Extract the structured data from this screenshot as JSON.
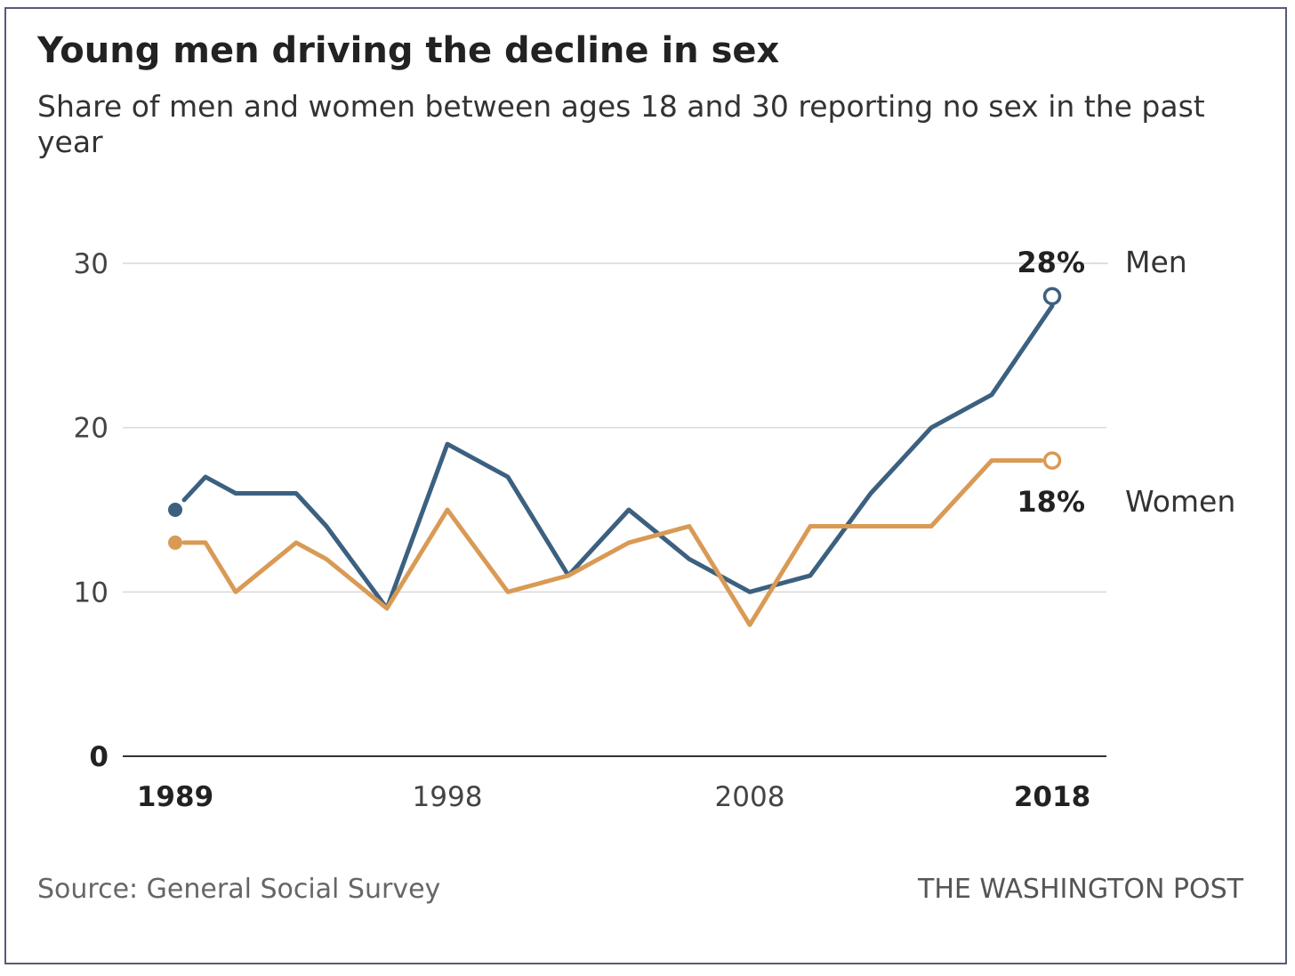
{
  "colors": {
    "men": "#3c6080",
    "women": "#d99a55",
    "grid": "#d9d9d9",
    "axis": "#333333"
  },
  "chart_data": {
    "type": "line",
    "title": "Young men driving the decline in sex",
    "subtitle": "Share of men and women between ages 18 and 30 reporting no sex in the past year",
    "x": [
      1989,
      1990,
      1991,
      1993,
      1994,
      1996,
      1998,
      2000,
      2002,
      2004,
      2006,
      2008,
      2010,
      2012,
      2014,
      2016,
      2018
    ],
    "series": [
      {
        "name": "Men",
        "label": "28%",
        "values": [
          15,
          17,
          16,
          16,
          14,
          9,
          19,
          17,
          11,
          15,
          12,
          10,
          11,
          16,
          20,
          22,
          28
        ]
      },
      {
        "name": "Women",
        "label": "18%",
        "values": [
          13,
          13,
          10,
          13,
          12,
          9,
          15,
          10,
          11,
          13,
          14,
          8,
          14,
          14,
          14,
          18,
          18
        ]
      }
    ],
    "xticks": [
      {
        "value": 1989,
        "label": "1989",
        "bold": true
      },
      {
        "value": 1998,
        "label": "1998",
        "bold": false
      },
      {
        "value": 2008,
        "label": "2008",
        "bold": false
      },
      {
        "value": 2018,
        "label": "2018",
        "bold": true
      }
    ],
    "yticks": [
      {
        "value": 0,
        "label": "0",
        "bold": true
      },
      {
        "value": 10,
        "label": "10",
        "bold": false
      },
      {
        "value": 20,
        "label": "20",
        "bold": false
      },
      {
        "value": 30,
        "label": "30",
        "bold": false
      }
    ],
    "xlim": [
      1989,
      2018
    ],
    "ylim": [
      0,
      30
    ],
    "grid": true,
    "legend": "direct labels at line ends",
    "source": "Source: General Social Survey",
    "credit": "THE WASHINGTON POST"
  }
}
